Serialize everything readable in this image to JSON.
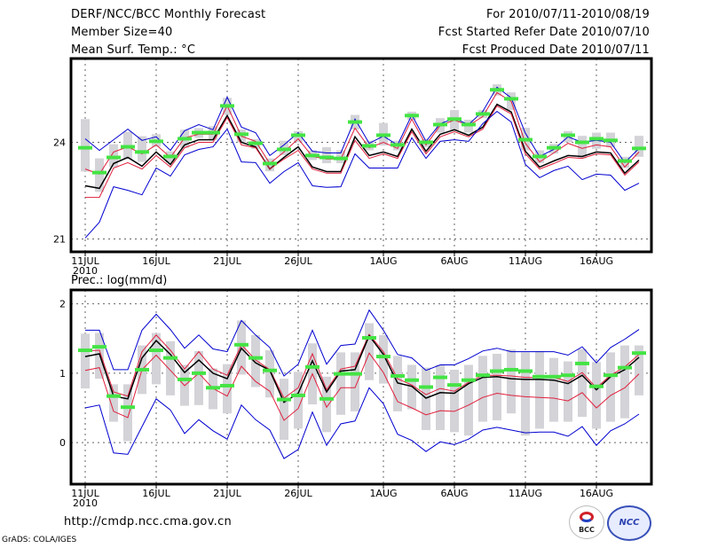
{
  "header": {
    "left": [
      "DERF/NCC/BCC Monthly Forecast",
      "Member Size=40",
      "Mean Surf. Temp.: °C"
    ],
    "right": [
      "For 2010/07/11-2010/08/19",
      "Fcst Started Refer Date 2010/07/10",
      "Fcst Produced Date 2010/07/11"
    ]
  },
  "footer": {
    "url": "http://cmdp.ncc.cma.gov.cn",
    "credit": "GrADS: COLA/IGES",
    "logos": [
      {
        "name": "BCC",
        "label": "BCC"
      },
      {
        "name": "NCC",
        "label": "NCC"
      }
    ]
  },
  "colors": {
    "box": "#d3d3d8",
    "median": "#44e444",
    "mean": "#000000",
    "inner_band": "#e0203c",
    "outer_band": "#0000d0",
    "grid": "#666666"
  },
  "chart_data": [
    {
      "type": "line",
      "title": "Mean Surf. Temp.: °C",
      "xlabel": "",
      "ylabel": "°C",
      "x_start": "2010-07-11",
      "x_end": "2010-08-19",
      "n_days": 40,
      "xticks": [
        {
          "day": 0,
          "label": "11JUL",
          "sub": "2010"
        },
        {
          "day": 5,
          "label": "16JUL"
        },
        {
          "day": 10,
          "label": "21JUL"
        },
        {
          "day": 15,
          "label": "26JUL"
        },
        {
          "day": 21,
          "label": "1AUG"
        },
        {
          "day": 26,
          "label": "6AUG"
        },
        {
          "day": 31,
          "label": "11AUG"
        },
        {
          "day": 36,
          "label": "16AUG"
        }
      ],
      "yticks": [
        21,
        24
      ],
      "ylim": [
        20.6,
        26.6
      ],
      "grid": true,
      "series": [
        {
          "name": "outer-upper",
          "style": "outer_band",
          "values": [
            24.11,
            23.75,
            24.08,
            24.41,
            24.06,
            24.17,
            23.75,
            24.36,
            24.55,
            24.39,
            25.4,
            24.47,
            24.3,
            23.59,
            23.92,
            24.3,
            23.72,
            23.67,
            23.67,
            24.72,
            23.97,
            24.19,
            23.92,
            24.85,
            24.03,
            24.58,
            24.74,
            24.55,
            24.96,
            25.71,
            25.38,
            24.28,
            23.56,
            23.78,
            24.17,
            24.0,
            24.06,
            24.0,
            23.37,
            23.81
          ]
        },
        {
          "name": "inner-upper",
          "style": "inner_band",
          "values": [
            23.17,
            23.01,
            23.7,
            23.86,
            23.64,
            23.92,
            23.53,
            24.14,
            24.25,
            24.25,
            25.13,
            24.19,
            24.03,
            23.34,
            23.7,
            24.11,
            23.56,
            23.48,
            23.48,
            24.44,
            23.83,
            24.0,
            23.81,
            24.72,
            23.92,
            24.52,
            24.69,
            24.52,
            24.8,
            25.54,
            25.27,
            23.97,
            23.39,
            23.67,
            23.97,
            23.81,
            23.92,
            23.86,
            23.23,
            23.7
          ]
        },
        {
          "name": "ensemble-mean",
          "style": "mean",
          "values": [
            22.65,
            22.57,
            23.34,
            23.53,
            23.26,
            23.7,
            23.31,
            23.92,
            24.08,
            24.08,
            24.83,
            24.0,
            23.86,
            23.17,
            23.53,
            23.86,
            23.23,
            23.09,
            23.09,
            24.17,
            23.59,
            23.7,
            23.56,
            24.41,
            23.72,
            24.25,
            24.39,
            24.22,
            24.47,
            25.18,
            24.94,
            23.72,
            23.23,
            23.42,
            23.59,
            23.56,
            23.7,
            23.67,
            23.04,
            23.45
          ]
        },
        {
          "name": "inner-lower",
          "style": "inner_band",
          "values": [
            22.29,
            22.29,
            23.2,
            23.37,
            23.17,
            23.59,
            23.23,
            23.83,
            24.0,
            24.0,
            24.77,
            23.92,
            23.83,
            23.17,
            23.48,
            23.75,
            23.17,
            23.04,
            23.04,
            24.06,
            23.5,
            23.64,
            23.5,
            24.33,
            23.64,
            24.17,
            24.33,
            24.17,
            24.41,
            25.13,
            24.88,
            23.64,
            23.17,
            23.34,
            23.53,
            23.5,
            23.64,
            23.61,
            22.98,
            23.39
          ]
        },
        {
          "name": "outer-lower",
          "style": "outer_band",
          "values": [
            21.03,
            21.52,
            22.62,
            22.51,
            22.37,
            23.2,
            22.95,
            23.61,
            23.78,
            23.86,
            24.41,
            23.39,
            23.37,
            22.73,
            23.09,
            23.37,
            22.65,
            22.6,
            22.62,
            23.64,
            23.2,
            23.2,
            23.2,
            24.14,
            23.5,
            24.03,
            24.08,
            24.03,
            24.58,
            24.96,
            24.63,
            23.31,
            22.9,
            23.12,
            23.26,
            22.84,
            23.01,
            22.98,
            22.51,
            22.73
          ]
        },
        {
          "name": "median-marker",
          "style": "median",
          "values": [
            23.83,
            23.06,
            23.53,
            23.86,
            23.7,
            24.03,
            23.56,
            24.11,
            24.3,
            24.3,
            25.13,
            24.25,
            23.97,
            23.34,
            23.78,
            24.22,
            23.59,
            23.53,
            23.5,
            24.63,
            23.89,
            24.22,
            23.92,
            24.83,
            24.0,
            24.55,
            24.72,
            24.55,
            24.88,
            25.63,
            25.35,
            24.08,
            23.56,
            23.83,
            24.22,
            24.0,
            24.11,
            24.06,
            23.42,
            23.81
          ]
        }
      ],
      "boxes": [
        [
          23.09,
          24.72
        ],
        [
          22.46,
          23.5
        ],
        [
          23.23,
          23.94
        ],
        [
          23.48,
          24.33
        ],
        [
          23.39,
          24.19
        ],
        [
          23.86,
          24.25
        ],
        [
          23.37,
          23.72
        ],
        [
          23.83,
          24.39
        ],
        [
          24.14,
          24.44
        ],
        [
          24.08,
          24.5
        ],
        [
          24.85,
          25.38
        ],
        [
          24.0,
          24.4
        ],
        [
          23.8,
          24.1
        ],
        [
          23.1,
          23.5
        ],
        [
          23.6,
          24.05
        ],
        [
          24.0,
          24.35
        ],
        [
          23.45,
          23.75
        ],
        [
          23.35,
          23.85
        ],
        [
          23.35,
          23.75
        ],
        [
          24.4,
          24.85
        ],
        [
          23.75,
          24.05
        ],
        [
          23.9,
          24.6
        ],
        [
          23.75,
          24.05
        ],
        [
          24.7,
          24.95
        ],
        [
          23.85,
          24.1
        ],
        [
          24.3,
          24.75
        ],
        [
          24.35,
          25.0
        ],
        [
          24.3,
          24.7
        ],
        [
          24.75,
          25.0
        ],
        [
          25.45,
          25.8
        ],
        [
          25.0,
          25.55
        ],
        [
          23.75,
          24.45
        ],
        [
          23.35,
          23.75
        ],
        [
          23.65,
          23.95
        ],
        [
          24.0,
          24.35
        ],
        [
          23.5,
          24.2
        ],
        [
          23.8,
          24.3
        ],
        [
          23.85,
          24.3
        ],
        [
          23.2,
          23.55
        ],
        [
          23.55,
          24.2
        ]
      ]
    },
    {
      "type": "line",
      "title": "Prec.: log(mm/d)",
      "xlabel": "",
      "ylabel": "log(mm/d)",
      "x_start": "2010-07-11",
      "x_end": "2010-08-19",
      "n_days": 40,
      "xticks": [
        {
          "day": 0,
          "label": "11JUL",
          "sub": "2010"
        },
        {
          "day": 5,
          "label": "16JUL"
        },
        {
          "day": 10,
          "label": "21JUL"
        },
        {
          "day": 15,
          "label": "26JUL"
        },
        {
          "day": 21,
          "label": "1AUG"
        },
        {
          "day": 26,
          "label": "6AUG"
        },
        {
          "day": 31,
          "label": "11AUG"
        },
        {
          "day": 36,
          "label": "16AUG"
        }
      ],
      "yticks": [
        0,
        1,
        2
      ],
      "ylim": [
        -0.6,
        2.2
      ],
      "grid": true,
      "series": [
        {
          "name": "outer-upper",
          "style": "outer_band",
          "values": [
            1.62,
            1.62,
            1.05,
            1.05,
            1.62,
            1.85,
            1.63,
            1.36,
            1.55,
            1.35,
            1.31,
            1.76,
            1.55,
            1.37,
            0.96,
            1.13,
            1.62,
            1.13,
            1.4,
            1.42,
            1.91,
            1.62,
            1.27,
            1.22,
            1.04,
            1.12,
            1.12,
            1.21,
            1.32,
            1.36,
            1.31,
            1.31,
            1.31,
            1.31,
            1.26,
            1.38,
            1.15,
            1.37,
            1.49,
            1.63
          ]
        },
        {
          "name": "inner-upper",
          "style": "inner_band",
          "values": [
            1.32,
            1.33,
            0.73,
            0.67,
            1.31,
            1.55,
            1.33,
            1.06,
            1.31,
            1.06,
            0.97,
            1.41,
            1.19,
            1.05,
            0.64,
            0.79,
            1.28,
            0.76,
            1.06,
            1.1,
            1.56,
            1.31,
            0.92,
            0.83,
            0.69,
            0.78,
            0.74,
            0.87,
            0.97,
            0.97,
            0.96,
            0.94,
            0.94,
            0.94,
            0.88,
            1.01,
            0.79,
            0.97,
            1.09,
            1.27
          ]
        },
        {
          "name": "ensemble-mean",
          "style": "mean",
          "values": [
            1.24,
            1.28,
            0.67,
            0.63,
            1.22,
            1.47,
            1.27,
            1.01,
            1.19,
            1.0,
            0.92,
            1.36,
            1.15,
            1.04,
            0.58,
            0.71,
            1.18,
            0.73,
            1.03,
            1.05,
            1.54,
            1.27,
            0.86,
            0.81,
            0.64,
            0.72,
            0.71,
            0.85,
            0.94,
            0.95,
            0.92,
            0.91,
            0.91,
            0.9,
            0.85,
            0.97,
            0.76,
            0.95,
            1.05,
            1.23
          ]
        },
        {
          "name": "inner-lower",
          "style": "inner_band",
          "values": [
            1.04,
            1.08,
            0.45,
            0.36,
            1.05,
            1.26,
            1.04,
            0.82,
            1.0,
            0.78,
            0.67,
            1.1,
            0.88,
            0.74,
            0.32,
            0.49,
            0.99,
            0.51,
            0.79,
            0.79,
            1.29,
            1.01,
            0.59,
            0.5,
            0.4,
            0.46,
            0.45,
            0.54,
            0.65,
            0.71,
            0.68,
            0.66,
            0.65,
            0.64,
            0.6,
            0.72,
            0.5,
            0.68,
            0.79,
            0.99
          ]
        },
        {
          "name": "outer-lower",
          "style": "outer_band",
          "values": [
            0.5,
            0.54,
            -0.15,
            -0.17,
            0.23,
            0.63,
            0.47,
            0.13,
            0.33,
            0.17,
            0.05,
            0.54,
            0.33,
            0.18,
            -0.23,
            -0.1,
            0.44,
            -0.04,
            0.27,
            0.31,
            0.79,
            0.56,
            0.12,
            0.03,
            -0.13,
            0.01,
            -0.03,
            0.05,
            0.18,
            0.22,
            0.18,
            0.14,
            0.15,
            0.15,
            0.09,
            0.23,
            -0.04,
            0.17,
            0.27,
            0.41
          ]
        },
        {
          "name": "median-marker",
          "style": "median",
          "values": [
            1.33,
            1.38,
            0.67,
            0.51,
            1.05,
            1.33,
            1.22,
            0.91,
            1.0,
            0.79,
            0.82,
            1.41,
            1.22,
            1.04,
            0.62,
            0.68,
            1.09,
            0.63,
            0.99,
            0.99,
            1.51,
            1.24,
            0.96,
            0.9,
            0.8,
            0.94,
            0.83,
            0.9,
            0.97,
            1.03,
            1.05,
            1.03,
            0.95,
            0.95,
            0.97,
            1.14,
            0.81,
            0.97,
            1.08,
            1.29
          ]
        }
      ],
      "boxes": [
        [
          0.78,
          1.57
        ],
        [
          0.92,
          1.58
        ],
        [
          0.3,
          0.84
        ],
        [
          0.02,
          0.84
        ],
        [
          0.7,
          1.4
        ],
        [
          0.84,
          1.58
        ],
        [
          0.68,
          1.46
        ],
        [
          0.53,
          1.12
        ],
        [
          0.54,
          1.32
        ],
        [
          0.48,
          1.07
        ],
        [
          0.42,
          1.13
        ],
        [
          0.98,
          1.76
        ],
        [
          0.8,
          1.55
        ],
        [
          0.65,
          1.33
        ],
        [
          0.04,
          0.92
        ],
        [
          0.2,
          1.02
        ],
        [
          0.55,
          1.43
        ],
        [
          0.15,
          0.95
        ],
        [
          0.4,
          1.3
        ],
        [
          0.45,
          1.3
        ],
        [
          0.9,
          1.72
        ],
        [
          0.85,
          1.55
        ],
        [
          0.45,
          1.25
        ],
        [
          0.48,
          1.12
        ],
        [
          0.18,
          1.08
        ],
        [
          0.18,
          1.12
        ],
        [
          0.15,
          1.05
        ],
        [
          0.1,
          1.12
        ],
        [
          0.3,
          1.25
        ],
        [
          0.32,
          1.28
        ],
        [
          0.42,
          1.34
        ],
        [
          0.1,
          1.3
        ],
        [
          0.2,
          1.32
        ],
        [
          0.3,
          1.22
        ],
        [
          0.3,
          1.17
        ],
        [
          0.37,
          1.35
        ],
        [
          0.2,
          1.16
        ],
        [
          0.3,
          1.3
        ],
        [
          0.35,
          1.4
        ],
        [
          0.68,
          1.4
        ]
      ]
    }
  ]
}
